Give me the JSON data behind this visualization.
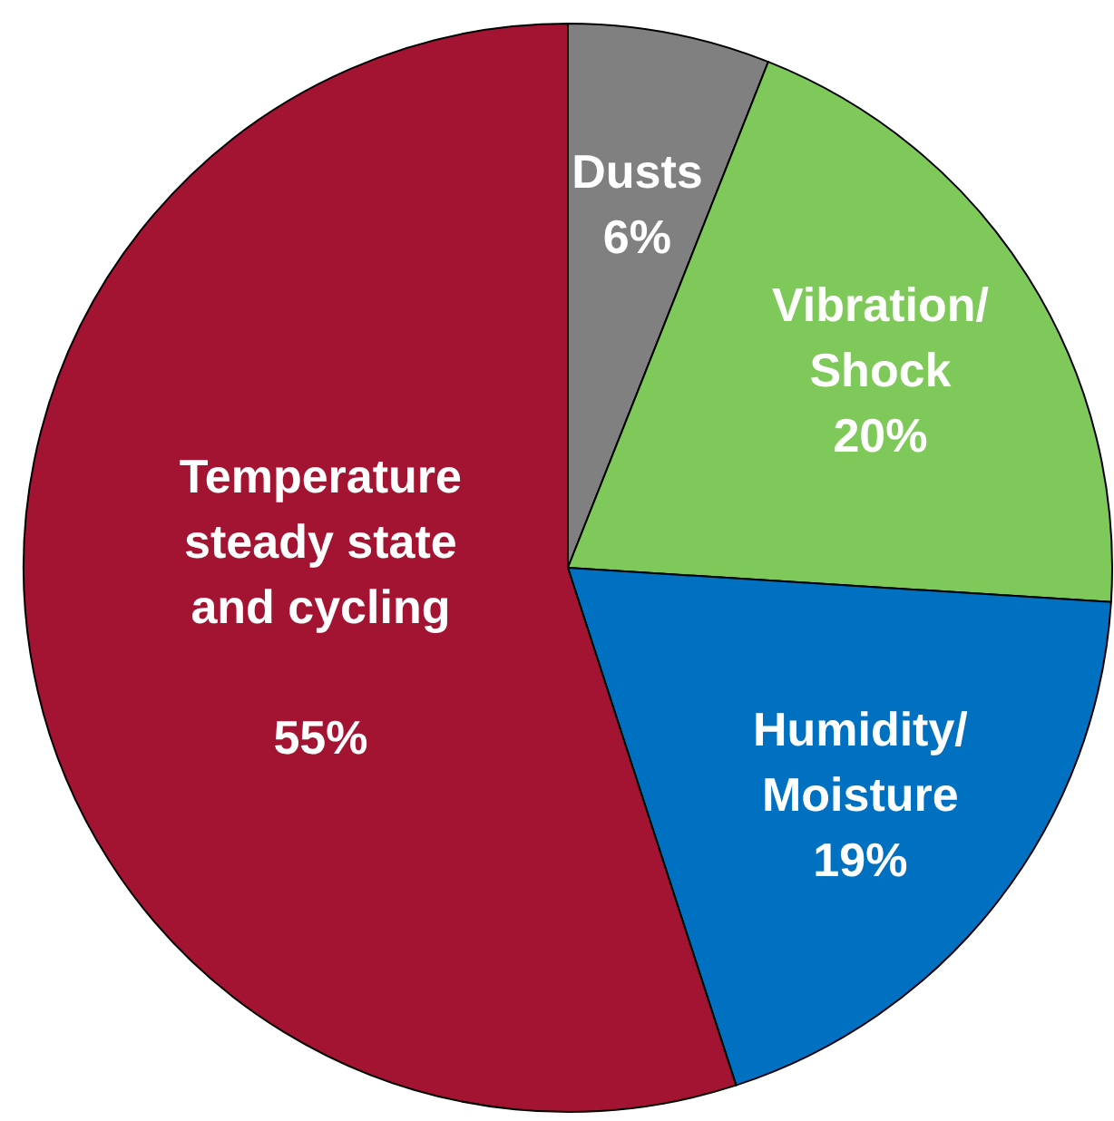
{
  "chart_data": {
    "type": "pie",
    "categories": [
      "Dusts",
      "Vibration/\nShock",
      "Humidity/\nMoisture",
      "Temperature\nsteady state\nand cycling"
    ],
    "values": [
      6,
      20,
      19,
      55
    ],
    "colors": [
      "#808080",
      "#7fc95a",
      "#0070c0",
      "#a21431"
    ],
    "value_labels": [
      "6%",
      "20%",
      "19%",
      "55%"
    ]
  }
}
